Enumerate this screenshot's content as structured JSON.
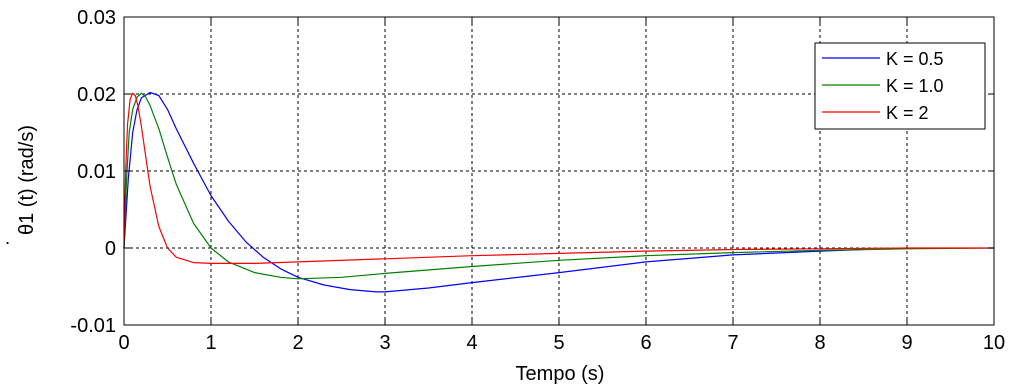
{
  "chart_data": {
    "type": "line",
    "xlabel": "Tempo (s)",
    "ylabel": "θ1 (t) (rad/s)",
    "ylabel_dot": "˙",
    "xlim": [
      0,
      10
    ],
    "ylim": [
      -0.01,
      0.03
    ],
    "x_ticks": [
      0,
      1,
      2,
      3,
      4,
      5,
      6,
      7,
      8,
      9,
      10
    ],
    "x_tick_labels": [
      "0",
      "1",
      "2",
      "3",
      "4",
      "5",
      "6",
      "7",
      "8",
      "9",
      "10"
    ],
    "y_ticks": [
      -0.01,
      0,
      0.01,
      0.02,
      0.03
    ],
    "y_tick_labels": [
      "-0.01",
      "0",
      "0.01",
      "0.02",
      "0.03"
    ],
    "grid": true,
    "legend_position": "top-right",
    "series": [
      {
        "name": "K = 0.5",
        "color": "#0000ff",
        "points": [
          [
            0,
            0
          ],
          [
            0.05,
            0.009
          ],
          [
            0.1,
            0.015
          ],
          [
            0.15,
            0.018
          ],
          [
            0.2,
            0.0195
          ],
          [
            0.3,
            0.0202
          ],
          [
            0.4,
            0.0198
          ],
          [
            0.5,
            0.018
          ],
          [
            0.6,
            0.0155
          ],
          [
            0.8,
            0.011
          ],
          [
            1.0,
            0.0068
          ],
          [
            1.2,
            0.0035
          ],
          [
            1.4,
            0.0008
          ],
          [
            1.6,
            -0.0012
          ],
          [
            1.8,
            -0.0027
          ],
          [
            2.0,
            -0.0038
          ],
          [
            2.3,
            -0.0048
          ],
          [
            2.6,
            -0.0054
          ],
          [
            2.9,
            -0.0057
          ],
          [
            3.0,
            -0.0057
          ],
          [
            3.5,
            -0.0052
          ],
          [
            4.0,
            -0.0045
          ],
          [
            5.0,
            -0.0032
          ],
          [
            6.0,
            -0.0018
          ],
          [
            7.0,
            -0.0009
          ],
          [
            8.0,
            -0.0004
          ],
          [
            8.5,
            -0.0002
          ]
        ]
      },
      {
        "name": "K = 1.0",
        "color": "#008000",
        "points": [
          [
            0,
            0
          ],
          [
            0.03,
            0.009
          ],
          [
            0.06,
            0.015
          ],
          [
            0.1,
            0.018
          ],
          [
            0.15,
            0.0196
          ],
          [
            0.2,
            0.0201
          ],
          [
            0.25,
            0.0196
          ],
          [
            0.3,
            0.0185
          ],
          [
            0.4,
            0.0155
          ],
          [
            0.5,
            0.0118
          ],
          [
            0.6,
            0.0083
          ],
          [
            0.8,
            0.0032
          ],
          [
            1.0,
            0.0
          ],
          [
            1.2,
            -0.0018
          ],
          [
            1.5,
            -0.0032
          ],
          [
            1.8,
            -0.0038
          ],
          [
            2.0,
            -0.004
          ],
          [
            2.5,
            -0.0038
          ],
          [
            3.0,
            -0.0033
          ],
          [
            4.0,
            -0.0024
          ],
          [
            5.0,
            -0.0016
          ],
          [
            6.0,
            -0.001
          ],
          [
            7.0,
            -0.0006
          ],
          [
            8.0,
            -0.0003
          ],
          [
            9.0,
            -0.0001
          ],
          [
            10.0,
            0.0
          ]
        ]
      },
      {
        "name": "K = 2",
        "color": "#ff0000",
        "points": [
          [
            0,
            0
          ],
          [
            0.02,
            0.01
          ],
          [
            0.04,
            0.016
          ],
          [
            0.07,
            0.0193
          ],
          [
            0.1,
            0.0201
          ],
          [
            0.13,
            0.0198
          ],
          [
            0.16,
            0.0185
          ],
          [
            0.2,
            0.0158
          ],
          [
            0.25,
            0.0118
          ],
          [
            0.3,
            0.008
          ],
          [
            0.4,
            0.0028
          ],
          [
            0.5,
            0.0
          ],
          [
            0.6,
            -0.0012
          ],
          [
            0.8,
            -0.0019
          ],
          [
            1.0,
            -0.002
          ],
          [
            1.5,
            -0.002
          ],
          [
            2.0,
            -0.0018
          ],
          [
            3.0,
            -0.0014
          ],
          [
            4.0,
            -0.001
          ],
          [
            5.0,
            -0.0007
          ],
          [
            6.0,
            -0.0004
          ],
          [
            7.0,
            -0.0002
          ],
          [
            8.0,
            -0.0001
          ],
          [
            9.0,
            0.0
          ],
          [
            10.0,
            0.0
          ]
        ]
      }
    ]
  }
}
